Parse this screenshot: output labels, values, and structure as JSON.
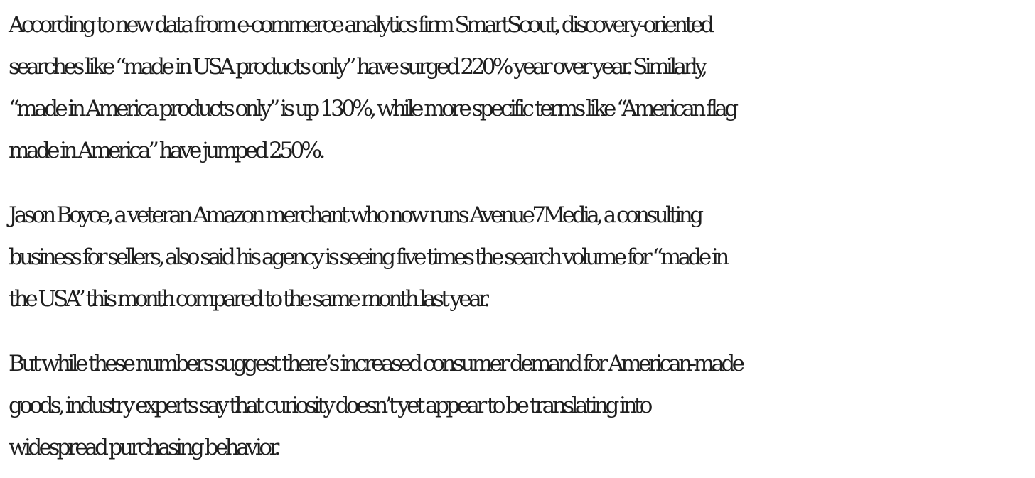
{
  "article": {
    "paragraphs": [
      {
        "lines": [
          "According to new data from e-commerce analytics firm SmartScout, discovery-oriented",
          "searches like “made in USA products only” have surged 220% year over year. Similarly,",
          "“made in America products only” is up 130%, while more specific terms like “American flag",
          "made in America” have jumped 250%."
        ]
      },
      {
        "lines": [
          "Jason Boyce, a veteran Amazon merchant who now runs Avenue7Media, a consulting",
          "business for sellers, also said his agency is seeing five times the search volume for “made in",
          "the USA” this month compared to the same month last year."
        ]
      },
      {
        "lines": [
          "But while these numbers suggest there’s increased consumer demand for American-made",
          "goods, industry experts say that curiosity doesn’t yet appear to be translating into",
          "widespread purchasing behavior."
        ]
      }
    ]
  }
}
